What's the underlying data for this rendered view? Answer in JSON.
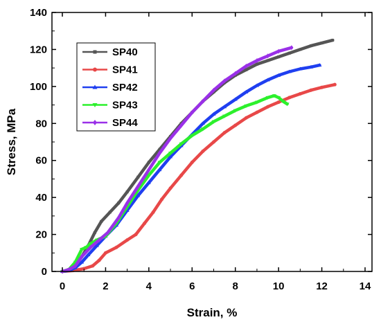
{
  "chart_data": {
    "type": "line",
    "xlabel": "Strain, %",
    "ylabel": "Stress, MPa",
    "xlim": [
      0,
      14
    ],
    "ylim": [
      0,
      140
    ],
    "xticks": [
      0,
      2,
      4,
      6,
      8,
      10,
      12,
      14
    ],
    "yticks": [
      0,
      20,
      40,
      60,
      80,
      100,
      120,
      140
    ],
    "grid": false,
    "legend_position": "top-left",
    "series": [
      {
        "name": "SP40",
        "color": "#555555",
        "marker": "square",
        "points": [
          [
            0,
            0
          ],
          [
            0.3,
            1
          ],
          [
            0.6,
            3
          ],
          [
            0.9,
            8
          ],
          [
            1.2,
            14
          ],
          [
            1.5,
            21
          ],
          [
            1.8,
            27
          ],
          [
            2.2,
            32
          ],
          [
            2.6,
            37
          ],
          [
            3,
            43
          ],
          [
            3.5,
            51
          ],
          [
            4,
            59
          ],
          [
            4.5,
            66
          ],
          [
            5,
            73
          ],
          [
            5.5,
            80
          ],
          [
            6,
            86
          ],
          [
            6.5,
            92
          ],
          [
            7,
            97
          ],
          [
            7.5,
            102
          ],
          [
            8,
            106
          ],
          [
            8.5,
            109
          ],
          [
            9,
            112
          ],
          [
            9.5,
            114
          ],
          [
            10,
            116
          ],
          [
            10.5,
            118
          ],
          [
            11,
            120
          ],
          [
            11.5,
            122
          ],
          [
            12,
            123.5
          ],
          [
            12.5,
            125
          ]
        ]
      },
      {
        "name": "SP41",
        "color": "#e84848",
        "marker": "circle",
        "points": [
          [
            0,
            0
          ],
          [
            0.5,
            0.5
          ],
          [
            1,
            1.5
          ],
          [
            1.4,
            3
          ],
          [
            1.7,
            6
          ],
          [
            2,
            10
          ],
          [
            2.5,
            13
          ],
          [
            3,
            17
          ],
          [
            3.4,
            20
          ],
          [
            3.8,
            26
          ],
          [
            4.2,
            32
          ],
          [
            4.6,
            39
          ],
          [
            5,
            45
          ],
          [
            5.5,
            52
          ],
          [
            6,
            59
          ],
          [
            6.5,
            65
          ],
          [
            7,
            70
          ],
          [
            7.5,
            75
          ],
          [
            8,
            79
          ],
          [
            8.5,
            83
          ],
          [
            9,
            86
          ],
          [
            9.5,
            89
          ],
          [
            10,
            91.5
          ],
          [
            10.5,
            94
          ],
          [
            11,
            96
          ],
          [
            11.5,
            98
          ],
          [
            12,
            99.5
          ],
          [
            12.6,
            101
          ]
        ]
      },
      {
        "name": "SP42",
        "color": "#1f3ff0",
        "marker": "triangle-up",
        "points": [
          [
            0,
            0
          ],
          [
            0.3,
            0.5
          ],
          [
            0.6,
            2
          ],
          [
            0.9,
            5
          ],
          [
            1.2,
            9
          ],
          [
            1.6,
            14
          ],
          [
            2,
            19
          ],
          [
            2.5,
            25
          ],
          [
            3,
            33
          ],
          [
            3.5,
            41
          ],
          [
            4,
            48
          ],
          [
            4.5,
            55
          ],
          [
            5,
            62
          ],
          [
            5.5,
            68
          ],
          [
            6,
            74
          ],
          [
            6.5,
            80
          ],
          [
            7,
            85
          ],
          [
            7.5,
            89
          ],
          [
            8,
            93
          ],
          [
            8.5,
            97
          ],
          [
            9,
            100.5
          ],
          [
            9.5,
            103.5
          ],
          [
            10,
            106
          ],
          [
            10.5,
            108
          ],
          [
            11,
            109.5
          ],
          [
            11.5,
            110.5
          ],
          [
            11.9,
            111.5
          ]
        ]
      },
      {
        "name": "SP43",
        "color": "#2cf02c",
        "marker": "triangle-down",
        "points": [
          [
            0,
            0
          ],
          [
            0.3,
            1
          ],
          [
            0.6,
            5
          ],
          [
            0.9,
            12
          ],
          [
            1.1,
            13
          ],
          [
            1.3,
            15
          ],
          [
            1.6,
            17
          ],
          [
            2,
            19
          ],
          [
            2.5,
            26
          ],
          [
            3,
            35
          ],
          [
            3.5,
            44
          ],
          [
            4,
            52
          ],
          [
            4.5,
            59
          ],
          [
            5,
            64
          ],
          [
            5.5,
            69
          ],
          [
            6,
            73.5
          ],
          [
            6.5,
            77
          ],
          [
            7,
            81
          ],
          [
            7.5,
            84
          ],
          [
            8,
            87
          ],
          [
            8.5,
            89.5
          ],
          [
            9,
            91.5
          ],
          [
            9.5,
            94
          ],
          [
            9.8,
            95
          ],
          [
            10,
            94
          ],
          [
            10.2,
            92
          ],
          [
            10.4,
            90.5
          ]
        ]
      },
      {
        "name": "SP44",
        "color": "#9a30e8",
        "marker": "diamond",
        "points": [
          [
            0,
            0
          ],
          [
            0.3,
            1
          ],
          [
            0.6,
            3
          ],
          [
            0.9,
            8
          ],
          [
            1.3,
            13
          ],
          [
            1.7,
            17
          ],
          [
            2.1,
            21
          ],
          [
            2.6,
            29
          ],
          [
            3,
            37
          ],
          [
            3.5,
            46
          ],
          [
            4,
            55
          ],
          [
            4.5,
            64
          ],
          [
            5,
            72
          ],
          [
            5.5,
            79
          ],
          [
            6,
            86
          ],
          [
            6.5,
            92
          ],
          [
            7,
            98
          ],
          [
            7.5,
            103
          ],
          [
            8,
            107
          ],
          [
            8.5,
            111
          ],
          [
            9,
            114
          ],
          [
            9.5,
            116.5
          ],
          [
            10,
            119
          ],
          [
            10.6,
            121
          ]
        ]
      }
    ]
  }
}
